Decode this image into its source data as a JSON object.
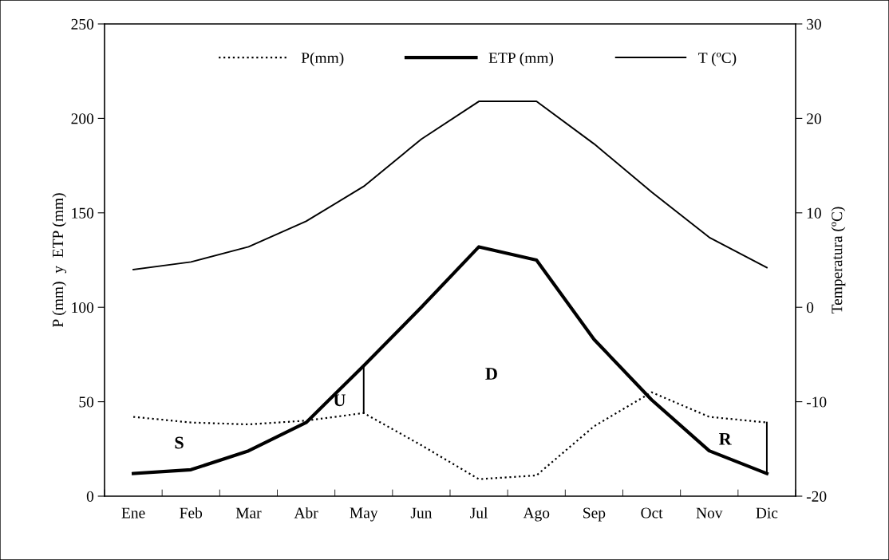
{
  "chart_data": {
    "type": "line",
    "categories": [
      "Ene",
      "Feb",
      "Mar",
      "Abr",
      "May",
      "Jun",
      "Jul",
      "Ago",
      "Sep",
      "Oct",
      "Nov",
      "Dic"
    ],
    "series": [
      {
        "name": "P(mm)",
        "color": "#000000",
        "line_style": "dotted",
        "values": [
          42,
          39,
          38,
          40,
          44,
          27,
          9,
          11,
          37,
          55,
          42,
          39
        ]
      },
      {
        "name": "ETP (mm)",
        "color": "#000000",
        "values": [
          12,
          14,
          24,
          39,
          69,
          100,
          132,
          125,
          83,
          51,
          24,
          12
        ]
      },
      {
        "name": "T (ºC)",
        "color": "#000000",
        "axis": "y2",
        "values": [
          4.0,
          4.8,
          6.4,
          9.1,
          12.8,
          17.8,
          21.8,
          21.8,
          17.3,
          12.2,
          7.4,
          4.2
        ]
      },
      {
        "type": "line",
        "color": "#000000",
        "x": [
          "May",
          "May"
        ],
        "values": [
          44,
          69
        ]
      },
      {
        "type": "line",
        "color": "#000000",
        "x": [
          "Dic",
          "Dic"
        ],
        "values": [
          12,
          39
        ]
      }
    ],
    "ylabel": "P (mm)  y  ETP (mm)",
    "y2label": "Temperatura (ºC)",
    "ylim": [
      0,
      250
    ],
    "yticks": [
      0,
      50,
      100,
      150,
      200,
      250
    ],
    "y2lim": [
      -20,
      30
    ],
    "y2ticks": [
      -20,
      -10,
      0,
      10,
      20,
      30
    ],
    "annotations": [
      "S",
      "U",
      "D",
      "R"
    ],
    "legend": "top",
    "grid": false,
    "marker": "none"
  }
}
